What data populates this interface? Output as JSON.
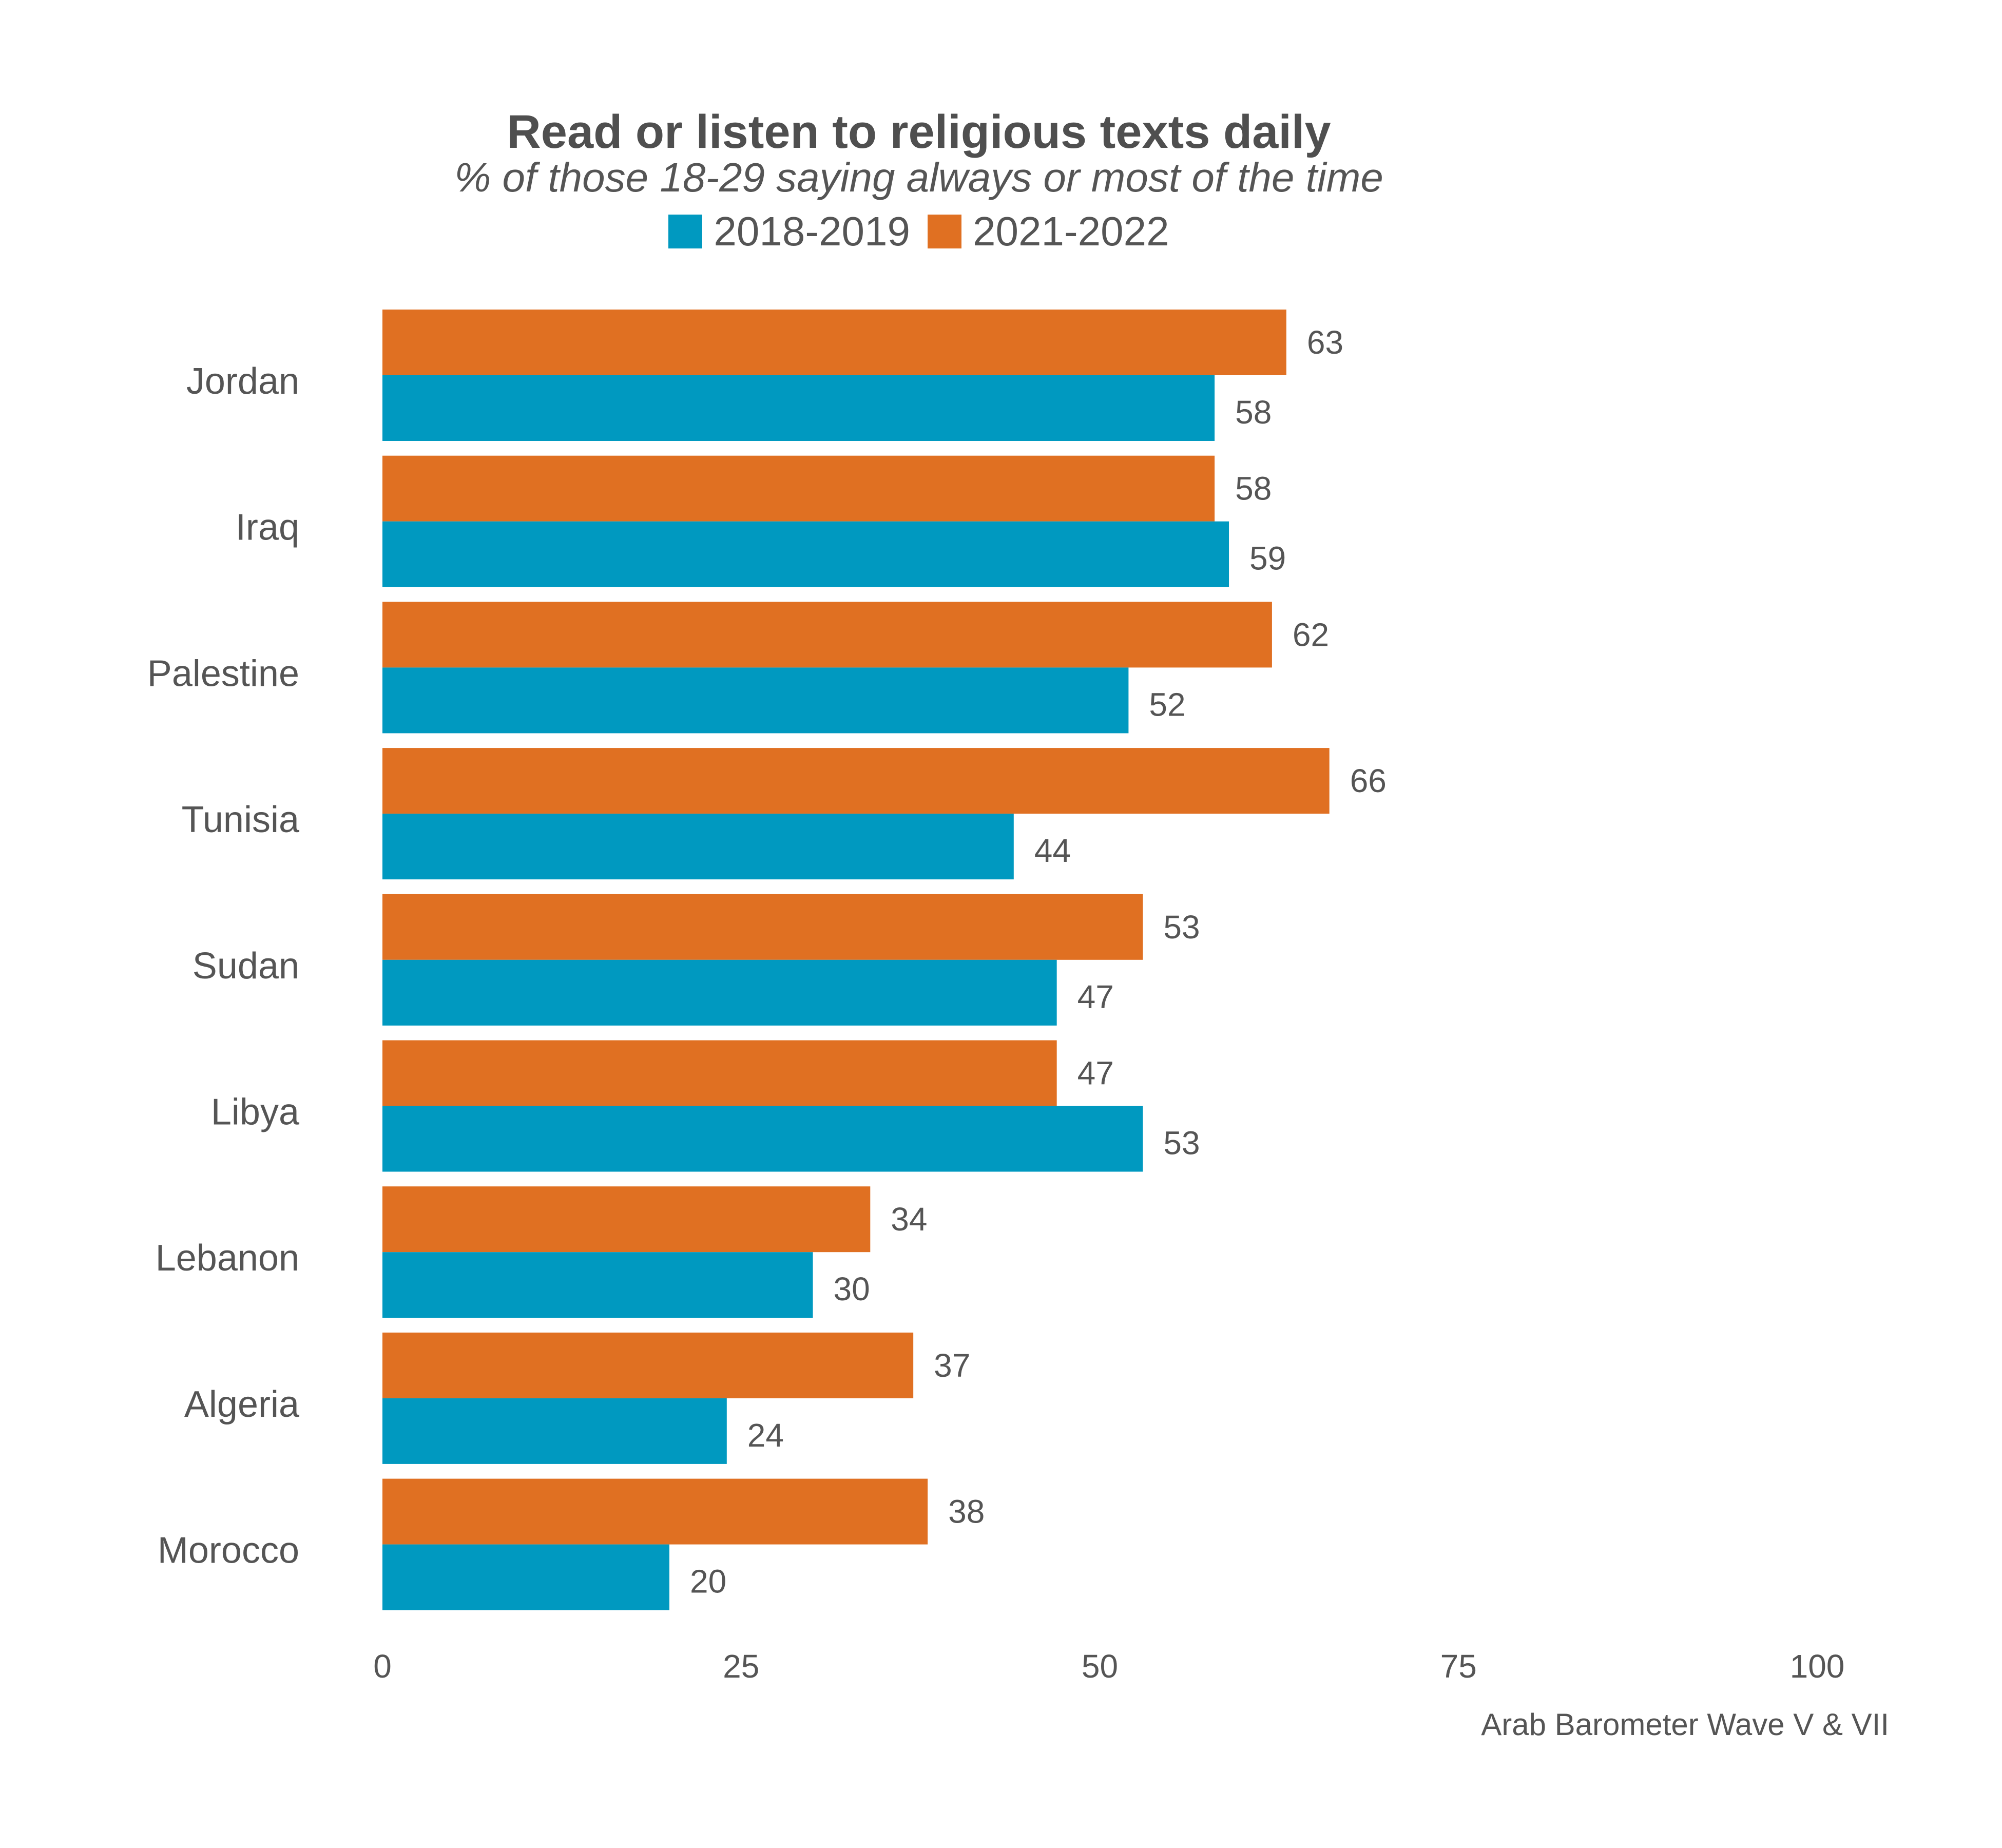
{
  "chart_data": {
    "type": "bar",
    "orientation": "horizontal",
    "title": "Read or listen to religious texts daily",
    "subtitle": "% of those 18-29 saying always or most of the time",
    "categories": [
      "Jordan",
      "Iraq",
      "Palestine",
      "Tunisia",
      "Sudan",
      "Libya",
      "Lebanon",
      "Algeria",
      "Morocco"
    ],
    "series": [
      {
        "name": "2018-2019",
        "color": "#0099c0",
        "values": [
          58,
          59,
          52,
          44,
          47,
          53,
          30,
          24,
          20
        ],
        "labels": [
          "58",
          "59",
          "52",
          "44",
          "47",
          "53",
          "30",
          "24",
          "20"
        ]
      },
      {
        "name": "2021-2022",
        "color": "#e07022",
        "values": [
          63,
          58,
          62,
          66,
          53,
          47,
          34,
          37,
          38
        ],
        "labels": [
          "63",
          "58",
          "62",
          "66",
          "53",
          "47",
          "34",
          "37",
          "38"
        ]
      }
    ],
    "xlim": [
      0,
      100
    ],
    "xticks": [
      0,
      25,
      50,
      75,
      100
    ],
    "xtick_labels": [
      "0",
      "25",
      "50",
      "75",
      "100"
    ],
    "grid": false,
    "legend_position": "top-center",
    "xlabel": "",
    "ylabel": ""
  },
  "source_note": "Arab Barometer Wave V & VII"
}
